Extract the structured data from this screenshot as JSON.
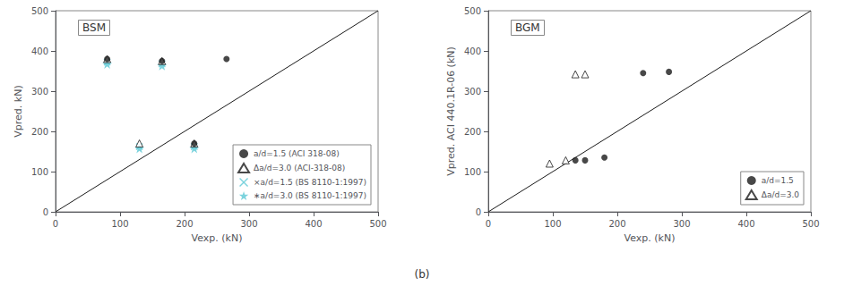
{
  "chart_data": [
    {
      "type": "scatter",
      "title": "BSM",
      "x_label": "Vexp. (kN)",
      "y_label": "Vpred. kN)",
      "xlim": [
        0,
        500
      ],
      "ylim": [
        0,
        500
      ],
      "xticks": [
        0,
        100,
        200,
        300,
        400,
        500
      ],
      "yticks": [
        0,
        100,
        200,
        300,
        400,
        500
      ],
      "grid": false,
      "legend": "lower right",
      "series": [
        {
          "name": "a/d=1.5 (ACI 318-08)",
          "color": "#1a1a1a",
          "marker": "circle",
          "x": [
            80,
            165,
            215,
            265
          ],
          "values": [
            380,
            375,
            170,
            380
          ]
        },
        {
          "name": "Δa/d=3.0 (ACI-318-08)",
          "color": "#1a1a1a",
          "marker": "open_triangle",
          "x": [
            80,
            130,
            165,
            215
          ],
          "values": [
            380,
            170,
            375,
            170
          ]
        },
        {
          "name": "×a/d=1.5 (BS 8110-1:1997)",
          "color": "#5bc8d5",
          "marker": "x",
          "x": [
            80,
            130,
            165,
            215
          ],
          "values": [
            372,
            162,
            368,
            162
          ]
        },
        {
          "name": "∗a/d=3.0 (BS 8110-1:1997)",
          "color": "#5bc8d5",
          "marker": "star",
          "x": [
            80,
            130,
            165,
            215
          ],
          "values": [
            368,
            158,
            364,
            158
          ]
        },
        {
          "type": "line",
          "color": "#1a1a1a",
          "x": [
            0,
            500
          ],
          "values": [
            0,
            500
          ]
        }
      ]
    },
    {
      "type": "scatter",
      "title": "BGM",
      "x_label": "Vexp. (kN)",
      "y_label": "Vpred. ACI 440.1R-06 (kN)",
      "xlim": [
        0,
        500
      ],
      "ylim": [
        0,
        500
      ],
      "xticks": [
        0,
        100,
        200,
        300,
        400,
        500
      ],
      "yticks": [
        0,
        100,
        200,
        300,
        400,
        500
      ],
      "grid": false,
      "legend": "lower right",
      "series": [
        {
          "name": "a/d=1.5",
          "color": "#1a1a1a",
          "marker": "circle",
          "x": [
            135,
            150,
            180,
            240,
            280
          ],
          "values": [
            128,
            128,
            135,
            345,
            348
          ]
        },
        {
          "name": "Δa/d=3.0",
          "color": "#1a1a1a",
          "marker": "open_triangle",
          "x": [
            95,
            120,
            135,
            150
          ],
          "values": [
            120,
            128,
            342,
            342
          ]
        },
        {
          "type": "line",
          "color": "#1a1a1a",
          "x": [
            0,
            500
          ],
          "values": [
            0,
            500
          ]
        }
      ]
    }
  ],
  "annotation": "(b)"
}
